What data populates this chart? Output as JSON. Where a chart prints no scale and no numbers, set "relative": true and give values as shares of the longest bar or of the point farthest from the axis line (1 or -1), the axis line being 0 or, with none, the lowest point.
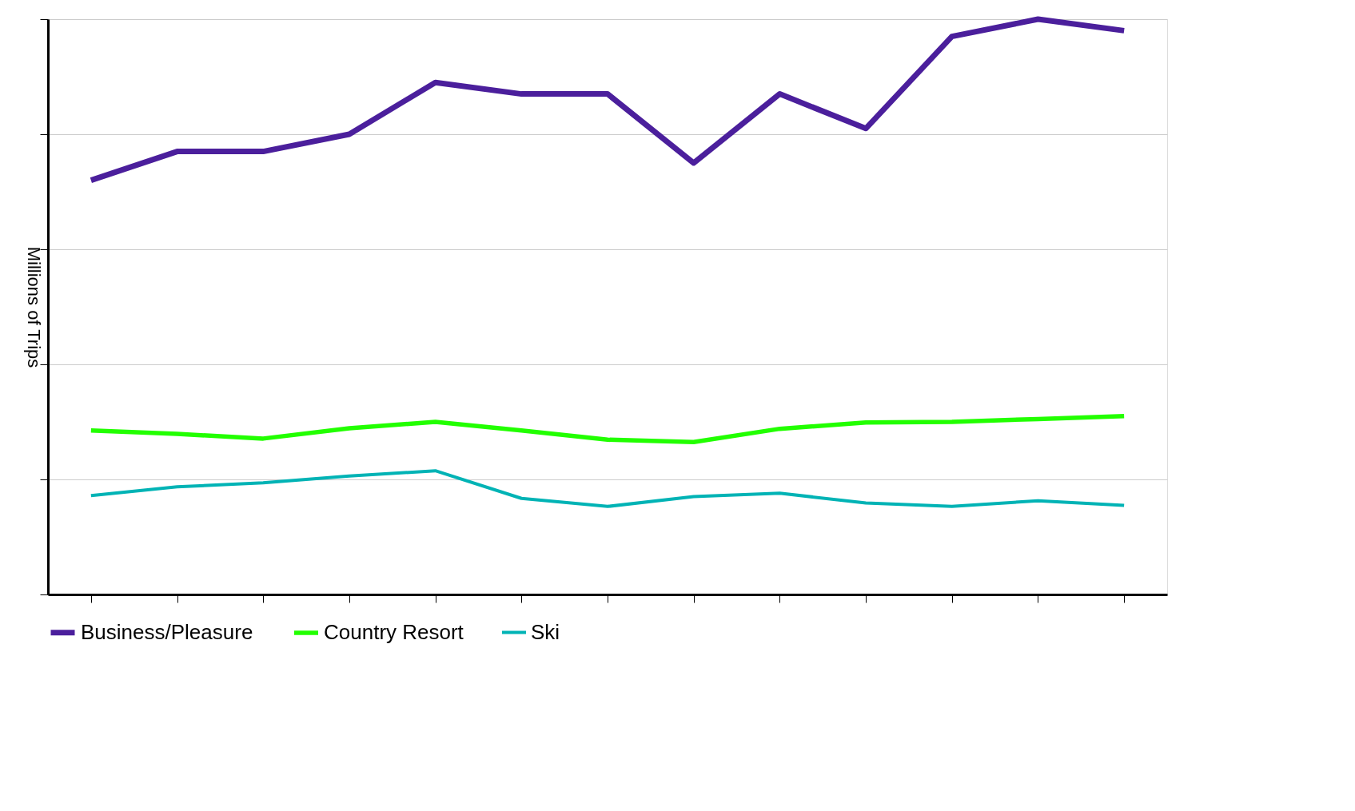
{
  "chart_data": {
    "type": "line",
    "ylabel": "Millions of Trips",
    "relative": true,
    "grid": "y",
    "legend": "bottom",
    "line_style": "solid",
    "marker": "none",
    "tick_labels": false,
    "categories": [
      null,
      null,
      null,
      null,
      null,
      null,
      null,
      null,
      null,
      null,
      null,
      null,
      null
    ],
    "series": [
      {
        "name": "Business/Pleasure",
        "color": "#4b1f9c",
        "values": [
          0.72,
          0.77,
          0.77,
          0.8,
          0.89,
          0.87,
          0.87,
          0.75,
          0.87,
          0.81,
          0.97,
          1,
          0.98
        ]
      },
      {
        "name": "Country Resort",
        "color": "#22ff00",
        "values": [
          0.285,
          0.279,
          0.271,
          0.289,
          0.3,
          0.285,
          0.269,
          0.265,
          0.288,
          0.299,
          0.3,
          0.305,
          0.31
        ]
      },
      {
        "name": "Ski",
        "color": "#00b3b5",
        "values": [
          0.172,
          0.187,
          0.194,
          0.206,
          0.215,
          0.167,
          0.153,
          0.17,
          0.176,
          0.159,
          0.153,
          0.163,
          0.155
        ]
      }
    ]
  }
}
